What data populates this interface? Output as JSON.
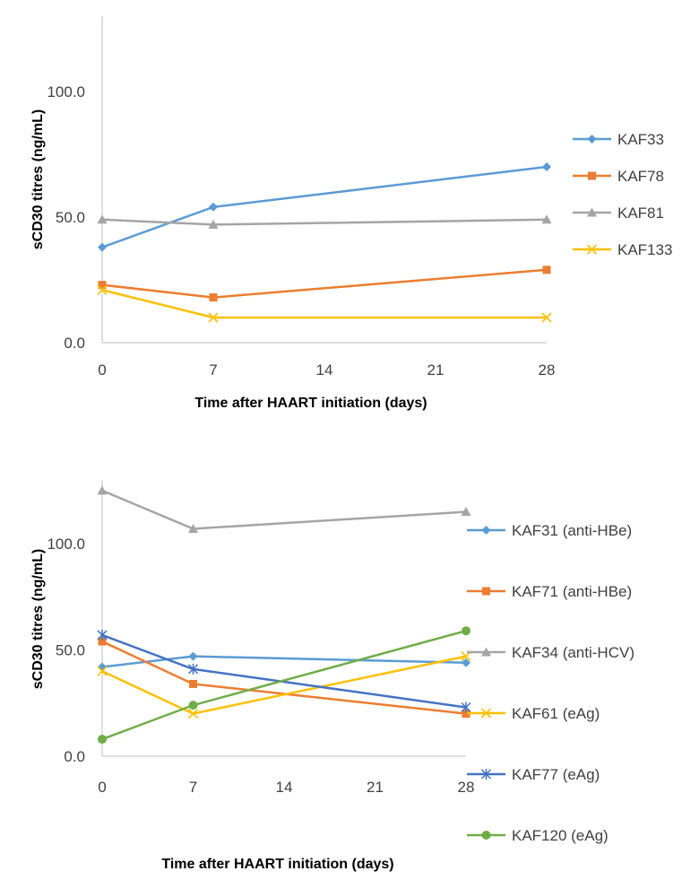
{
  "chart_data": [
    {
      "type": "line",
      "title": "",
      "xlabel": "Time after HAART initiation  (days)",
      "ylabel": "sCD30 titres  (ng/mL)",
      "x": [
        0,
        7,
        28
      ],
      "xticks": [
        "0",
        "7",
        "14",
        "21",
        "28"
      ],
      "xtick_values": [
        0,
        7,
        14,
        21,
        28
      ],
      "xlim": [
        0,
        28
      ],
      "yticks": [
        "0.0",
        "50.0",
        "100.0"
      ],
      "ytick_values": [
        0,
        50,
        100
      ],
      "ylim": [
        0,
        130
      ],
      "grid": false,
      "legend_position": "right",
      "series": [
        {
          "name": "KAF33",
          "values": [
            38,
            54,
            70
          ],
          "color": "#5B9BD5",
          "marker": "diamond"
        },
        {
          "name": "KAF78",
          "values": [
            23,
            18,
            29
          ],
          "color": "#ED7D31",
          "marker": "square"
        },
        {
          "name": "KAF81",
          "values": [
            49,
            47,
            49
          ],
          "color": "#A5A5A5",
          "marker": "triangle"
        },
        {
          "name": "KAF133",
          "values": [
            21,
            10,
            10
          ],
          "color": "#FFC000",
          "marker": "x"
        }
      ]
    },
    {
      "type": "line",
      "title": "",
      "xlabel": "Time after HAART initiation  (days)",
      "ylabel": "sCD30 titres  (ng/mL)",
      "x": [
        0,
        7,
        28
      ],
      "xticks": [
        "0",
        "7",
        "14",
        "21",
        "28"
      ],
      "xtick_values": [
        0,
        7,
        14,
        21,
        28
      ],
      "xlim": [
        0,
        28
      ],
      "yticks": [
        "0.0",
        "50.0",
        "100.0"
      ],
      "ytick_values": [
        0,
        50,
        100
      ],
      "ylim": [
        0,
        130
      ],
      "grid": false,
      "legend_position": "right",
      "series": [
        {
          "name": "KAF31 (anti-HBe)",
          "values": [
            42,
            47,
            44
          ],
          "color": "#5B9BD5",
          "marker": "diamond"
        },
        {
          "name": "KAF71 (anti-HBe)",
          "values": [
            54,
            34,
            20
          ],
          "color": "#ED7D31",
          "marker": "square"
        },
        {
          "name": "KAF34 (anti-HCV)",
          "values": [
            125,
            107,
            115
          ],
          "color": "#A5A5A5",
          "marker": "triangle"
        },
        {
          "name": "KAF61 (eAg)",
          "values": [
            40,
            20,
            47
          ],
          "color": "#FFC000",
          "marker": "x"
        },
        {
          "name": "KAF77 (eAg)",
          "values": [
            57,
            41,
            23
          ],
          "color": "#4472C4",
          "marker": "star"
        },
        {
          "name": "KAF120 (eAg)",
          "values": [
            8,
            24,
            59
          ],
          "color": "#70AD47",
          "marker": "circle"
        }
      ]
    }
  ]
}
